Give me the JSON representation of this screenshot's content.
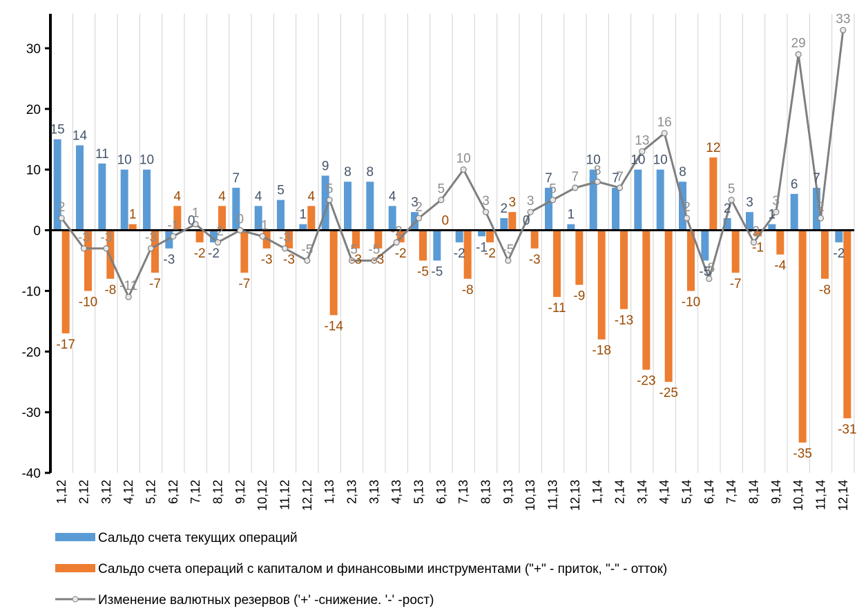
{
  "chart_data": {
    "type": "bar-line",
    "categories": [
      "1,12",
      "2,12",
      "3,12",
      "4,12",
      "5,12",
      "6,12",
      "7,12",
      "8,12",
      "9,12",
      "10,12",
      "11,12",
      "12,12",
      "1,13",
      "2,13",
      "3,13",
      "4,13",
      "5,13",
      "6,13",
      "7,13",
      "8,13",
      "9,13",
      "10,13",
      "11,13",
      "12,13",
      "1,14",
      "2,14",
      "3,14",
      "4,14",
      "5,14",
      "6,14",
      "7,14",
      "8,14",
      "9,14",
      "10,14",
      "11,14",
      "12,14"
    ],
    "series": [
      {
        "name": "Сальдо счета текущих операций",
        "type": "bar",
        "color": "#5b9bd5",
        "label_color": "#44546a",
        "values": [
          15,
          14,
          11,
          10,
          10,
          -3,
          0,
          -2,
          7,
          4,
          5,
          1,
          9,
          8,
          8,
          4,
          3,
          -5,
          -2,
          -1,
          2,
          0,
          7,
          1,
          10,
          7,
          10,
          10,
          8,
          -5,
          2,
          3,
          1,
          6,
          7,
          -2
        ]
      },
      {
        "name": "Сальдо счета операций с капиталом и финансовыми инструментами (\"+\" - приток, \"-\" - отток)",
        "type": "bar",
        "color": "#ed7d31",
        "label_color": "#9c4a00",
        "values": [
          -17,
          -10,
          -8,
          1,
          -7,
          4,
          -2,
          4,
          -7,
          -3,
          -3,
          4,
          -14,
          -3,
          -3,
          -2,
          -5,
          0,
          -8,
          -2,
          3,
          -3,
          -11,
          -9,
          -18,
          -13,
          -23,
          -25,
          -10,
          12,
          -7,
          -1,
          -4,
          -35,
          -8,
          -31
        ]
      },
      {
        "name": "Изменение валютных резервов ('+' -снижение. '-' -рост)",
        "type": "line",
        "color": "#7f7f7f",
        "label_color": "#8c8c8c",
        "values": [
          2,
          -3,
          -3,
          -11,
          -3,
          -1,
          1,
          -2,
          0,
          -1,
          -3,
          -5,
          5,
          -5,
          -5,
          -2,
          2,
          5,
          10,
          3,
          -5,
          3,
          5,
          7,
          8,
          7,
          13,
          16,
          2,
          -8,
          5,
          -2,
          3,
          29,
          2,
          33
        ]
      }
    ],
    "ylim": [
      -40,
      35
    ],
    "yticks": [
      -40,
      -30,
      -20,
      -10,
      0,
      10,
      20,
      30
    ],
    "grid": true
  }
}
